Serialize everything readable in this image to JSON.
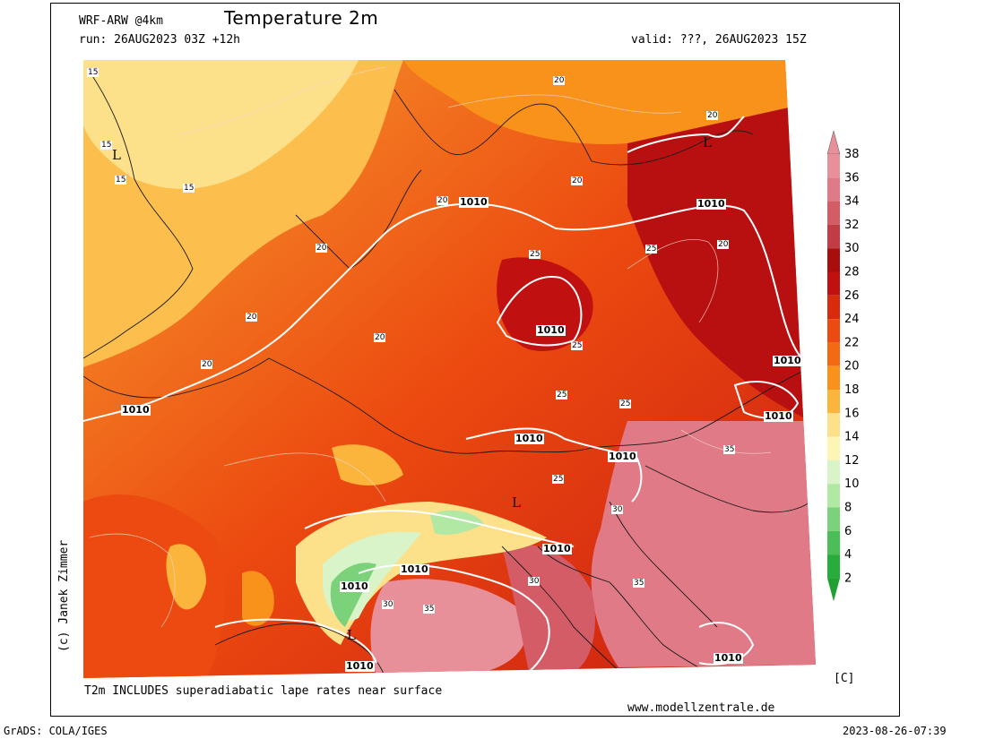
{
  "header": {
    "model": "WRF-ARW @4km",
    "title": "Temperature 2m",
    "run": "run: 26AUG2023 03Z +12h",
    "valid": "valid: ???, 26AUG2023 15Z"
  },
  "footer": {
    "note": "T2m INCLUDES superadiabatic lape rates near surface",
    "website": "www.modellzentrale.de",
    "credit": "(c) Janek Zimmer",
    "grads": "GrADS: COLA/IGES",
    "timestamp": "2023-08-26-07:39"
  },
  "legend": {
    "unit": "[C]",
    "levels": [
      "38",
      "36",
      "34",
      "32",
      "30",
      "28",
      "26",
      "24",
      "22",
      "20",
      "18",
      "16",
      "14",
      "12",
      "10",
      "8",
      "6",
      "4",
      "2"
    ],
    "colors": [
      "#e8909a",
      "#e07a86",
      "#d45c66",
      "#c23c46",
      "#a80e0e",
      "#c01010",
      "#d82a0c",
      "#ec4a10",
      "#f46a14",
      "#f8921a",
      "#fbb43c",
      "#fde08a",
      "#fcf6b4",
      "#d8f4c8",
      "#b0e8a4",
      "#7cd27a",
      "#4cbe58",
      "#28ac3c",
      "#20a030"
    ]
  },
  "map": {
    "pressure_labels": [
      "1010",
      "1010",
      "1010",
      "1010",
      "1010",
      "1010",
      "1010",
      "1010",
      "1010",
      "1010",
      "1010",
      "1010",
      "1010",
      "1010"
    ],
    "temp_labels": [
      "15",
      "15",
      "15",
      "15",
      "20",
      "20",
      "20",
      "20",
      "20",
      "20",
      "20",
      "20",
      "20",
      "25",
      "25",
      "25",
      "25",
      "25",
      "25",
      "30",
      "30",
      "30",
      "35",
      "35",
      "35"
    ],
    "low_markers": [
      "L",
      "L",
      "L",
      "L"
    ]
  }
}
